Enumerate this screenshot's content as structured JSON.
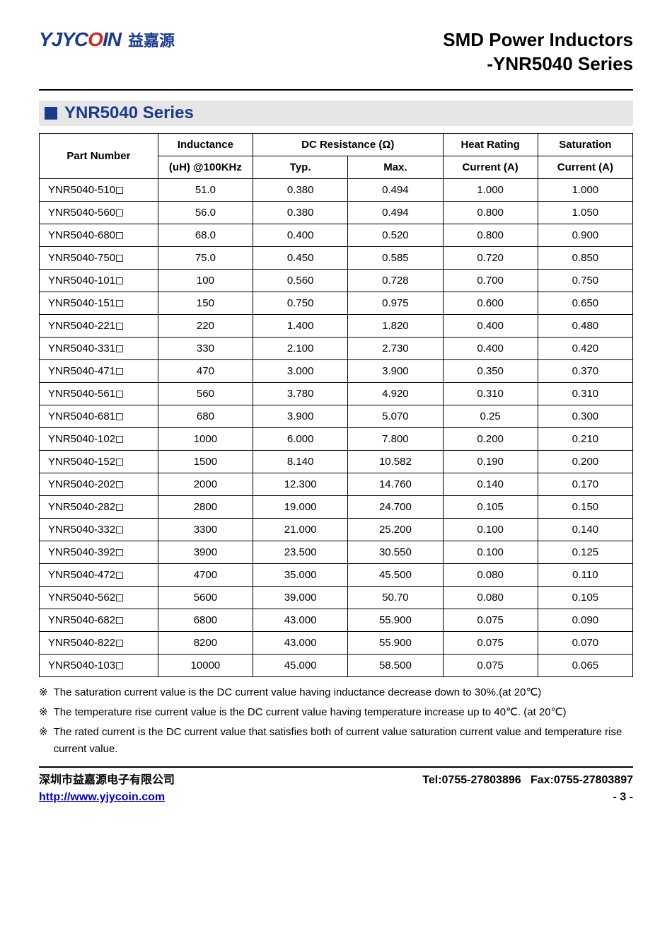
{
  "logo": {
    "en_pre": "YJYC",
    "en_red": "O",
    "en_post": "IN",
    "cn": "益嘉源"
  },
  "doc_title_line1": "SMD Power Inductors",
  "doc_title_line2": "-YNR5040 Series",
  "section_title": "YNR5040 Series",
  "table": {
    "headers": {
      "part_number": "Part Number",
      "inductance_top": "Inductance",
      "inductance_sub": "(uH) @100KHz",
      "dcr_top": "DC Resistance (Ω)",
      "dcr_typ": "Typ.",
      "dcr_max": "Max.",
      "heat_top": "Heat Rating",
      "heat_sub": "Current (A)",
      "sat_top": "Saturation",
      "sat_sub": "Current (A)"
    },
    "col_widths": [
      "20%",
      "16%",
      "16%",
      "16%",
      "16%",
      "16%"
    ],
    "rows": [
      {
        "pn": "YNR5040-510",
        "ind": "51.0",
        "typ": "0.380",
        "max": "0.494",
        "heat": "1.000",
        "sat": "1.000"
      },
      {
        "pn": "YNR5040-560",
        "ind": "56.0",
        "typ": "0.380",
        "max": "0.494",
        "heat": "0.800",
        "sat": "1.050"
      },
      {
        "pn": "YNR5040-680",
        "ind": "68.0",
        "typ": "0.400",
        "max": "0.520",
        "heat": "0.800",
        "sat": "0.900"
      },
      {
        "pn": "YNR5040-750",
        "ind": "75.0",
        "typ": "0.450",
        "max": "0.585",
        "heat": "0.720",
        "sat": "0.850"
      },
      {
        "pn": "YNR5040-101",
        "ind": "100",
        "typ": "0.560",
        "max": "0.728",
        "heat": "0.700",
        "sat": "0.750"
      },
      {
        "pn": "YNR5040-151",
        "ind": "150",
        "typ": "0.750",
        "max": "0.975",
        "heat": "0.600",
        "sat": "0.650"
      },
      {
        "pn": "YNR5040-221",
        "ind": "220",
        "typ": "1.400",
        "max": "1.820",
        "heat": "0.400",
        "sat": "0.480"
      },
      {
        "pn": "YNR5040-331",
        "ind": "330",
        "typ": "2.100",
        "max": "2.730",
        "heat": "0.400",
        "sat": "0.420"
      },
      {
        "pn": "YNR5040-471",
        "ind": "470",
        "typ": "3.000",
        "max": "3.900",
        "heat": "0.350",
        "sat": "0.370"
      },
      {
        "pn": "YNR5040-561",
        "ind": "560",
        "typ": "3.780",
        "max": "4.920",
        "heat": "0.310",
        "sat": "0.310"
      },
      {
        "pn": "YNR5040-681",
        "ind": "680",
        "typ": "3.900",
        "max": "5.070",
        "heat": "0.25",
        "sat": "0.300"
      },
      {
        "pn": "YNR5040-102",
        "ind": "1000",
        "typ": "6.000",
        "max": "7.800",
        "heat": "0.200",
        "sat": "0.210"
      },
      {
        "pn": "YNR5040-152",
        "ind": "1500",
        "typ": "8.140",
        "max": "10.582",
        "heat": "0.190",
        "sat": "0.200"
      },
      {
        "pn": "YNR5040-202",
        "ind": "2000",
        "typ": "12.300",
        "max": "14.760",
        "heat": "0.140",
        "sat": "0.170"
      },
      {
        "pn": "YNR5040-282",
        "ind": "2800",
        "typ": "19.000",
        "max": "24.700",
        "heat": "0.105",
        "sat": "0.150"
      },
      {
        "pn": "YNR5040-332",
        "ind": "3300",
        "typ": "21.000",
        "max": "25.200",
        "heat": "0.100",
        "sat": "0.140"
      },
      {
        "pn": "YNR5040-392",
        "ind": "3900",
        "typ": "23.500",
        "max": "30.550",
        "heat": "0.100",
        "sat": "0.125"
      },
      {
        "pn": "YNR5040-472",
        "ind": "4700",
        "typ": "35.000",
        "max": "45.500",
        "heat": "0.080",
        "sat": "0.110"
      },
      {
        "pn": "YNR5040-562",
        "ind": "5600",
        "typ": "39.000",
        "max": "50.70",
        "heat": "0.080",
        "sat": "0.105"
      },
      {
        "pn": "YNR5040-682",
        "ind": "6800",
        "typ": "43.000",
        "max": "55.900",
        "heat": "0.075",
        "sat": "0.090"
      },
      {
        "pn": "YNR5040-822",
        "ind": "8200",
        "typ": "43.000",
        "max": "55.900",
        "heat": "0.075",
        "sat": "0.070"
      },
      {
        "pn": "YNR5040-103",
        "ind": "10000",
        "typ": "45.000",
        "max": "58.500",
        "heat": "0.075",
        "sat": "0.065"
      }
    ]
  },
  "notes": {
    "symbol": "※",
    "items": [
      "The saturation current value is the DC current value having inductance decrease down to 30%.(at 20℃)",
      "The temperature rise current value is the DC current value having temperature increase up to 40℃. (at 20℃)",
      "The rated current is the DC current value that satisfies both of current value saturation current value and temperature rise current value."
    ]
  },
  "footer": {
    "company_cn": "深圳市益嘉源电子有限公司",
    "url": "http://www.yjycoin.com",
    "tel_label": "Tel:",
    "tel": "0755-27803896",
    "fax_label": "Fax:",
    "fax": "0755-27803897",
    "page": "- 3 -"
  },
  "colors": {
    "brand_blue": "#1a3a8a",
    "brand_red": "#d9261c",
    "section_bg": "#e6e6e6",
    "link": "#0000cc",
    "border": "#000000",
    "text": "#000000",
    "bg": "#ffffff"
  },
  "typography": {
    "doc_title_pt": 26,
    "section_title_pt": 24,
    "table_pt": 15,
    "notes_pt": 15,
    "footer_pt": 16,
    "font_family": "Arial"
  }
}
